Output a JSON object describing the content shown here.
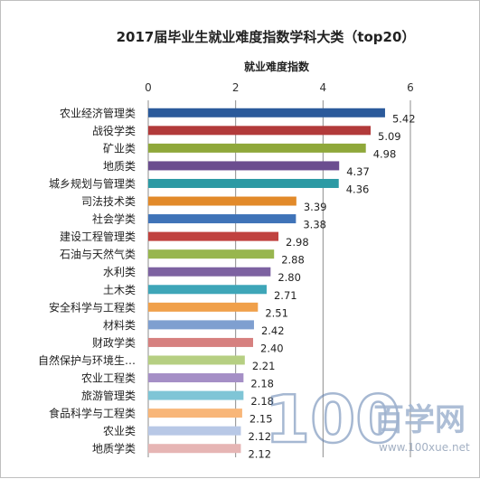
{
  "chart_data": {
    "type": "bar",
    "orientation": "horizontal",
    "title": "2017届毕业生就业难度指数学科大类（top20）",
    "xlabel": "就业难度指数",
    "xlim": [
      0,
      6
    ],
    "xticks": [
      "0",
      "2",
      "4",
      "6"
    ],
    "grid": true,
    "categories": [
      "农业经济管理类",
      "战役学类",
      "矿业类",
      "地质类",
      "城乡规划与管理类",
      "司法技术类",
      "社会学类",
      "建设工程管理类",
      "石油与天然气类",
      "水利类",
      "土木类",
      "安全科学与工程类",
      "材料类",
      "财政学类",
      "自然保护与环境生…",
      "农业工程类",
      "旅游管理类",
      "食品科学与工程类",
      "农业类",
      "地质学类"
    ],
    "values": [
      5.42,
      5.09,
      4.98,
      4.37,
      4.36,
      3.39,
      3.38,
      2.98,
      2.88,
      2.8,
      2.71,
      2.51,
      2.42,
      2.4,
      2.21,
      2.18,
      2.18,
      2.15,
      2.12,
      2.12
    ],
    "value_labels": [
      "5.42",
      "5.09",
      "4.98",
      "4.37",
      "4.36",
      "3.39",
      "3.38",
      "2.98",
      "2.88",
      "2.80",
      "2.71",
      "2.51",
      "2.42",
      "2.40",
      "2.21",
      "2.18",
      "2.18",
      "2.15",
      "2.12",
      "2.12"
    ],
    "colors": [
      "#2b5a9b",
      "#b23a3a",
      "#8fa83a",
      "#6b4d8f",
      "#2c9aa4",
      "#e28a2a",
      "#3f73b8",
      "#c0423f",
      "#98b64e",
      "#7d62a1",
      "#3ea6b8",
      "#f0a04a",
      "#7f9fd0",
      "#d6807f",
      "#b6cf82",
      "#a58fc6",
      "#7fc5d6",
      "#f8b679",
      "#b8c8e6",
      "#e6b5b4"
    ]
  },
  "watermark": {
    "logo_digits": "100",
    "text": "百学网",
    "url": "www.100xue.net"
  }
}
